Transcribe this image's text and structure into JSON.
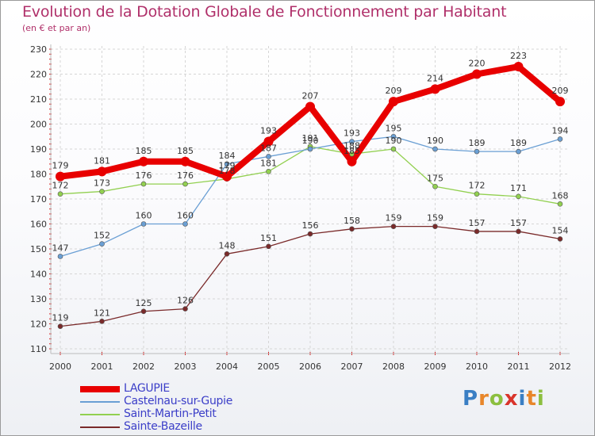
{
  "title": "Evolution de la Dotation Globale de Fonctionnement par Habitant",
  "subtitle": "(en € et par an)",
  "brand": {
    "text": "Proxiti",
    "letters": [
      {
        "ch": "P",
        "color": "#3a7fc4"
      },
      {
        "ch": "r",
        "color": "#e8862a"
      },
      {
        "ch": "o",
        "color": "#8cbf3f"
      },
      {
        "ch": "x",
        "color": "#d9342b"
      },
      {
        "ch": "i",
        "color": "#3a7fc4"
      },
      {
        "ch": "t",
        "color": "#e8862a"
      },
      {
        "ch": "i",
        "color": "#8cbf3f"
      }
    ]
  },
  "chart_data": {
    "type": "line",
    "x": [
      "2000",
      "2001",
      "2002",
      "2003",
      "2004",
      "2005",
      "2006",
      "2007",
      "2008",
      "2009",
      "2010",
      "2011",
      "2012"
    ],
    "ylim": [
      110,
      230
    ],
    "yticks": [
      110,
      120,
      130,
      140,
      150,
      160,
      170,
      180,
      190,
      200,
      210,
      220,
      230
    ],
    "grid": true,
    "legend": "bottom-left",
    "series": [
      {
        "name": "LAGUPIE",
        "color": "#e80000",
        "values": [
          179,
          181,
          185,
          185,
          179,
          193,
          207,
          185,
          209,
          214,
          220,
          223,
          209
        ]
      },
      {
        "name": "Castelnau-sur-Gupie",
        "color": "#6a9fd4",
        "values": [
          147,
          152,
          160,
          160,
          184,
          187,
          190,
          193,
          195,
          190,
          189,
          189,
          194
        ]
      },
      {
        "name": "Saint-Martin-Petit",
        "color": "#92d050",
        "values": [
          172,
          173,
          176,
          176,
          178,
          181,
          191,
          188,
          190,
          175,
          172,
          171,
          168
        ]
      },
      {
        "name": "Sainte-Bazeille",
        "color": "#7a2a2a",
        "values": [
          119,
          121,
          125,
          126,
          148,
          151,
          156,
          158,
          159,
          159,
          157,
          157,
          154
        ]
      }
    ]
  }
}
